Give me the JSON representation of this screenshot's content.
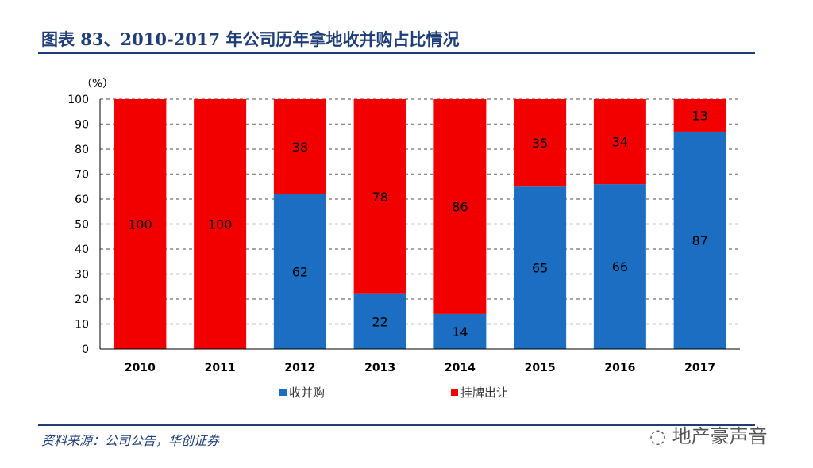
{
  "title": "图表 83、2010-2017 年公司历年拿地收并购占比情况",
  "source": "资料来源：公司公告，华创证券",
  "watermark": "地产豪声音",
  "chart_data": {
    "type": "bar",
    "stacked": true,
    "unit_label": "（%）",
    "categories": [
      "2010",
      "2011",
      "2012",
      "2013",
      "2014",
      "2015",
      "2016",
      "2017"
    ],
    "series": [
      {
        "name": "收并购",
        "color": "#1b6ec2",
        "values": [
          0,
          0,
          62,
          22,
          14,
          65,
          66,
          87
        ]
      },
      {
        "name": "挂牌出让",
        "color": "#f20000",
        "values": [
          100,
          100,
          38,
          78,
          86,
          35,
          34,
          13
        ]
      }
    ],
    "ylim": [
      0,
      100
    ],
    "yticks": [
      0,
      10,
      20,
      30,
      40,
      50,
      60,
      70,
      80,
      90,
      100
    ],
    "grid": true,
    "legend": "bottom"
  }
}
